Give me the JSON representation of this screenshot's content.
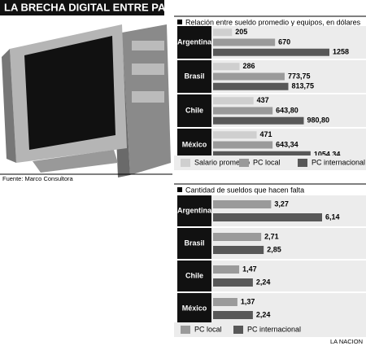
{
  "title": "LA BRECHA DIGITAL ENTRE PAISES",
  "source": "Fuente: Marco Consultora",
  "credit": "LA NACION",
  "chart_data": [
    {
      "type": "bar",
      "orientation": "horizontal",
      "title": "Relación entre sueldo promedio y equipos, en dólares",
      "categories": [
        "Argentina",
        "Brasil",
        "Chile",
        "México"
      ],
      "series": [
        {
          "name": "Salario promedio",
          "color": "#cfcfcf",
          "values": [
            205,
            286,
            437,
            471
          ],
          "value_labels": [
            "205",
            "286",
            "437",
            "471"
          ]
        },
        {
          "name": "PC local",
          "color": "#9a9a9a",
          "values": [
            670,
            773.75,
            643.8,
            643.34
          ],
          "value_labels": [
            "670",
            "773,75",
            "643,80",
            "643,34"
          ]
        },
        {
          "name": "PC internacional",
          "color": "#585858",
          "values": [
            1258,
            813.75,
            980.8,
            1054.34
          ],
          "value_labels": [
            "1258",
            "813,75",
            "980,80",
            "1054,34"
          ]
        }
      ]
    },
    {
      "type": "bar",
      "orientation": "horizontal",
      "title": "Cantidad de sueldos que hacen falta",
      "categories": [
        "Argentina",
        "Brasil",
        "Chile",
        "México"
      ],
      "series": [
        {
          "name": "PC local",
          "color": "#9a9a9a",
          "values": [
            3.27,
            2.71,
            1.47,
            1.37
          ],
          "value_labels": [
            "3,27",
            "2,71",
            "1,47",
            "1,37"
          ]
        },
        {
          "name": "PC internacional",
          "color": "#585858",
          "values": [
            6.14,
            2.85,
            2.24,
            2.24
          ],
          "value_labels": [
            "6,14",
            "2,85",
            "2,24",
            "2,24"
          ]
        }
      ]
    }
  ]
}
